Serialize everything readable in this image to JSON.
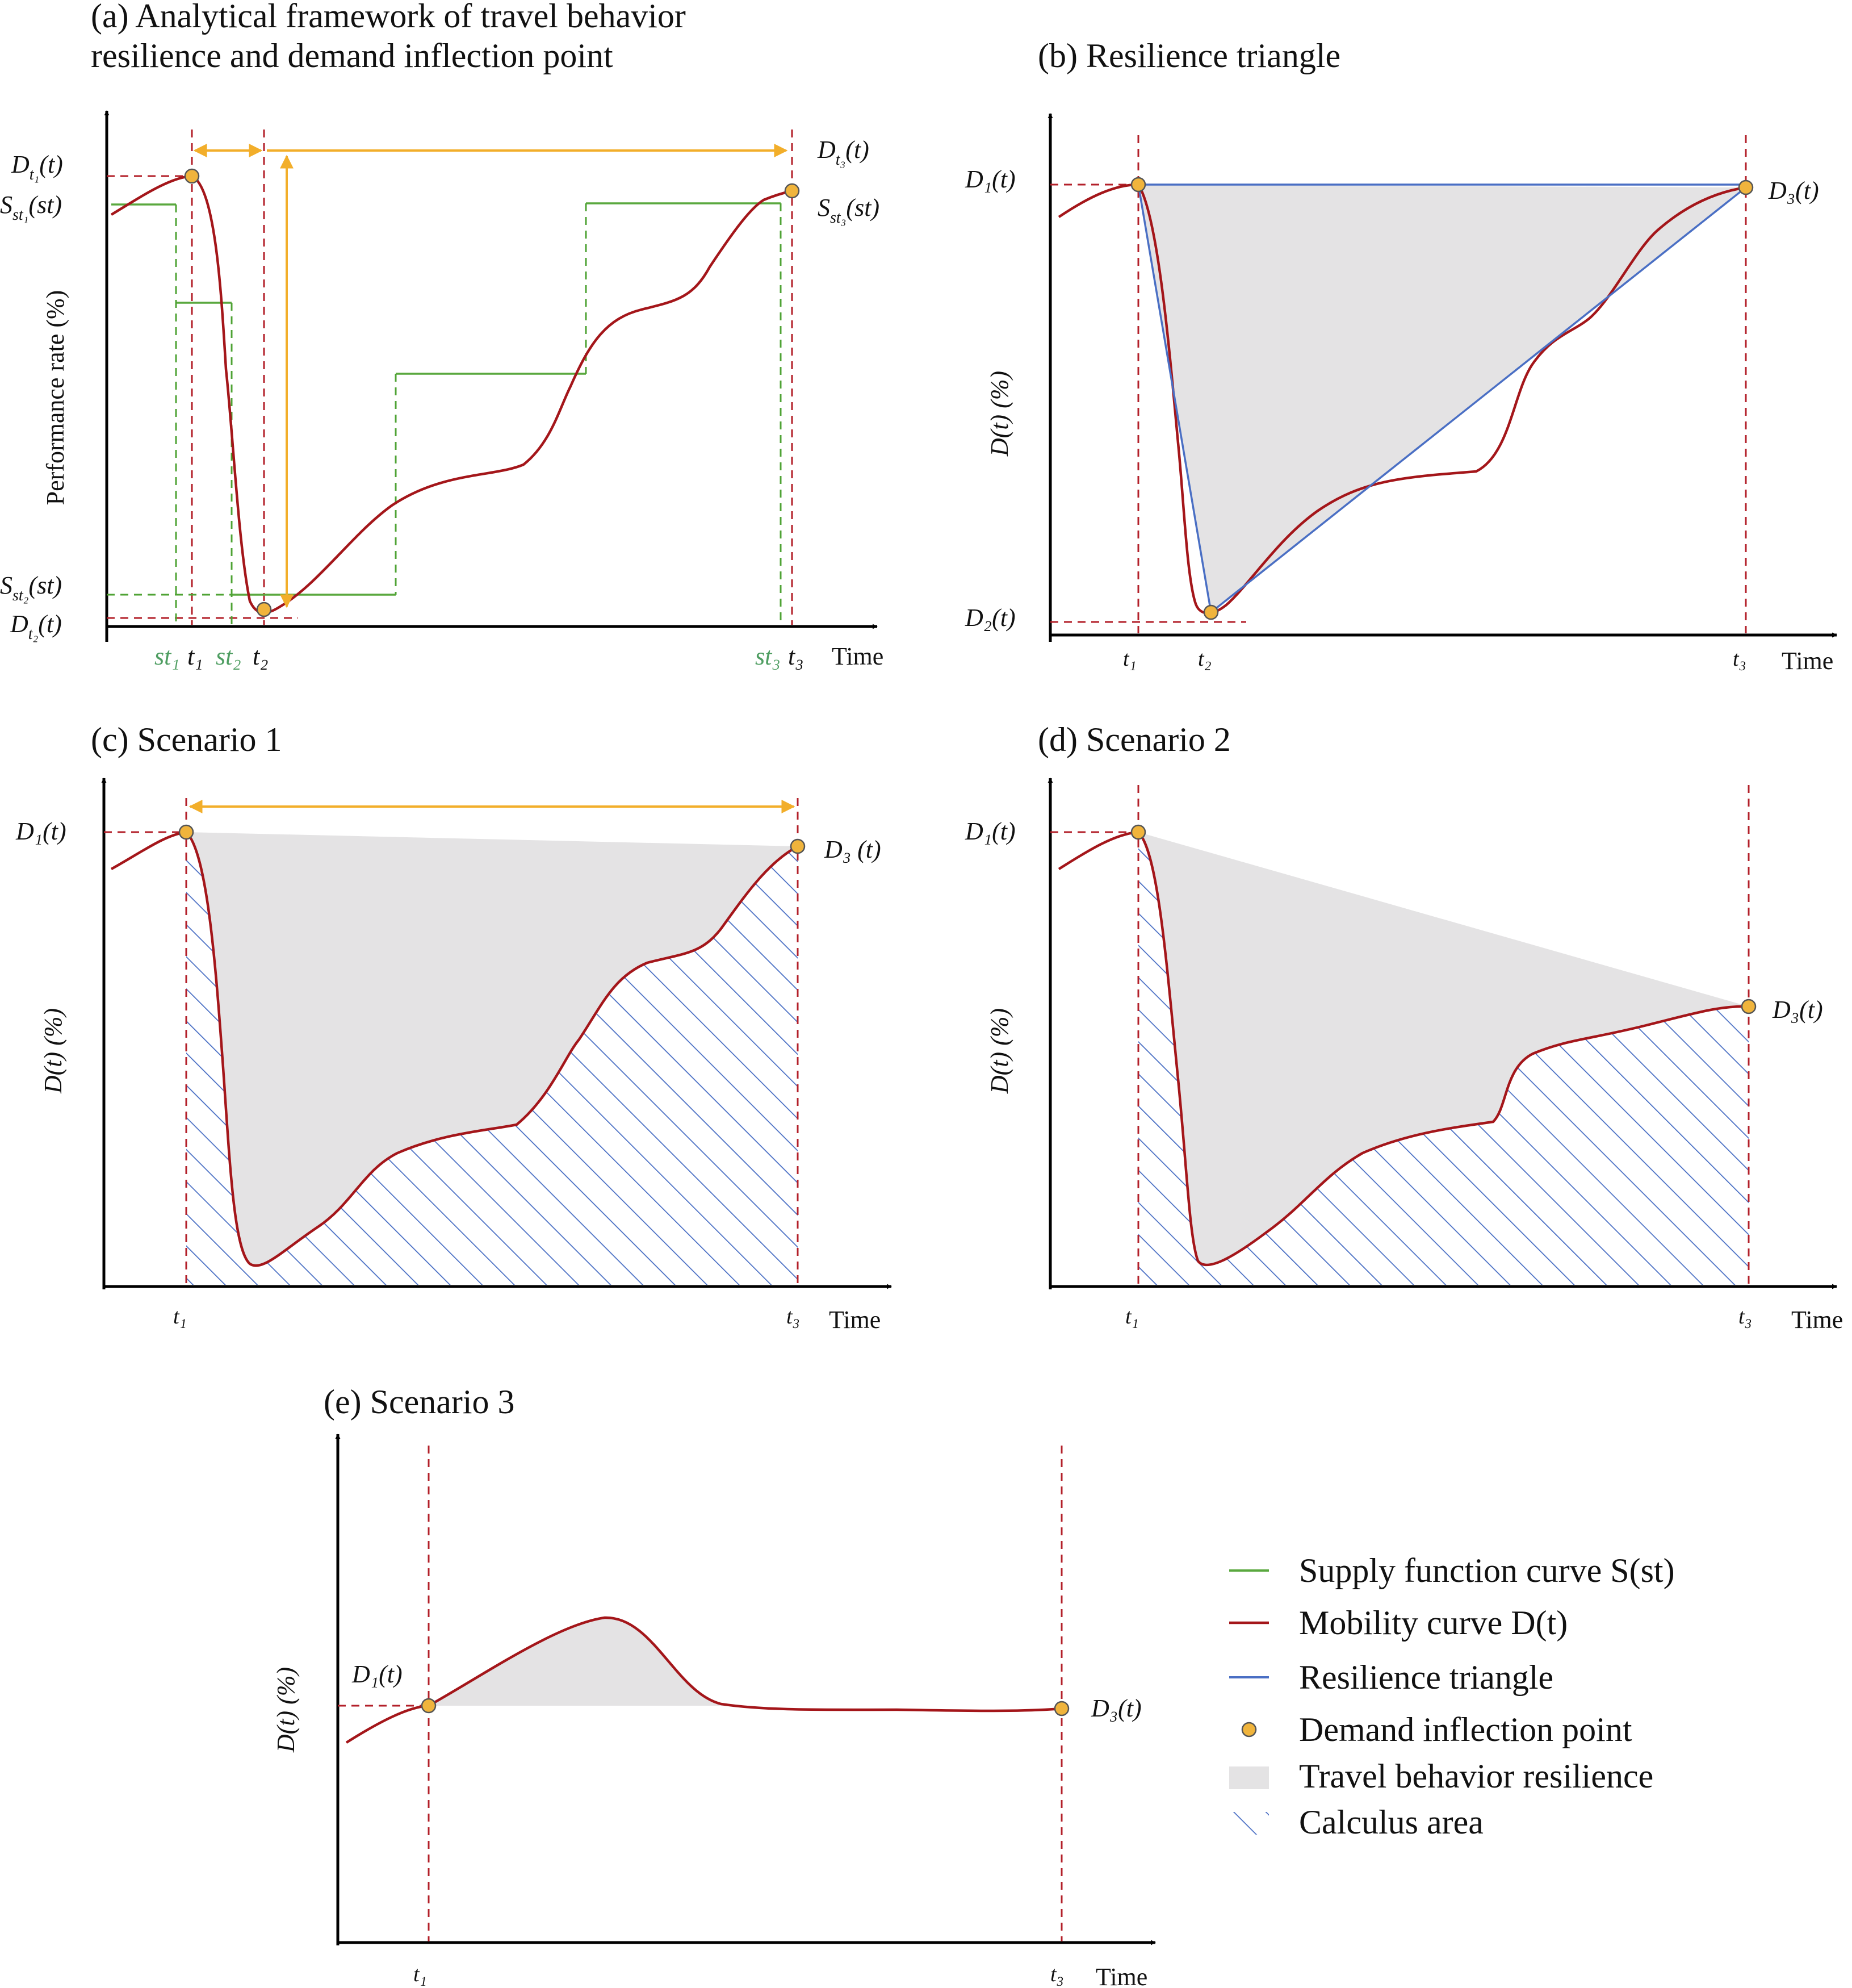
{
  "panels": {
    "a": {
      "title_line1": "(a) Analytical framework of travel behavior",
      "title_line2": "resilience and demand inflection point",
      "ylabel": "Performance rate (%)",
      "xlabel": "Time",
      "labels": {
        "d_t1": "D",
        "d_t1_sub": "t₁",
        "s_st1": "S",
        "s_st1_sub": "st₁",
        "s_st2": "S",
        "s_st2_sub": "st₂",
        "d_t2": "D",
        "d_t2_sub": "t₂",
        "d_t3": "D",
        "d_t3_sub": "t₃",
        "s_st3": "S",
        "s_st3_sub": "st₃",
        "of_t": "(t)",
        "of_st": "(st)"
      },
      "xticks": {
        "st1": "st₁",
        "t1": "t₁",
        "st2": "st₂",
        "t2": "t₂",
        "st3": "st₃",
        "t3": "t₃"
      }
    },
    "b": {
      "title": "(b) Resilience triangle",
      "ylabel": "D(t) (%)",
      "xlabel": "Time",
      "d1": "D₁(t)",
      "d2": "D₂(t)",
      "d3": "D₃(t)",
      "t1": "t₁",
      "t2": "t₂",
      "t3": "t₃"
    },
    "c": {
      "title": "(c) Scenario 1",
      "ylabel": "D(t) (%)",
      "xlabel": "Time",
      "d1": "D₁(t)",
      "d3": "D₃ (t)",
      "t1": "t₁",
      "t3": "t₃"
    },
    "d": {
      "title": "(d) Scenario 2",
      "ylabel": "D(t) (%)",
      "xlabel": "Time",
      "d1": "D₁(t)",
      "d3": "D₃(t)",
      "t1": "t₁",
      "t3": "t₃"
    },
    "e": {
      "title": "(e) Scenario 3",
      "ylabel": "D(t) (%)",
      "xlabel": "Time",
      "d1": "D₁(t)",
      "d3": "D₃(t)",
      "t1": "t₁",
      "t3": "t₃"
    }
  },
  "legend": {
    "supply": "Supply function curve S(st)",
    "mobility": "Mobility curve D(t)",
    "triangle": "Resilience triangle",
    "inflection": "Demand inflection point",
    "resilience": "Travel behavior resilience",
    "calculus": "Calculus area"
  },
  "colors": {
    "supply": "#5aa83f",
    "mobility": "#a4161a",
    "triangle": "#4a6fc4",
    "inflection": "#f0b43c",
    "resilience": "#e4e3e4",
    "calculus": "#4a6fc4",
    "arrow": "#f2ae2a"
  }
}
